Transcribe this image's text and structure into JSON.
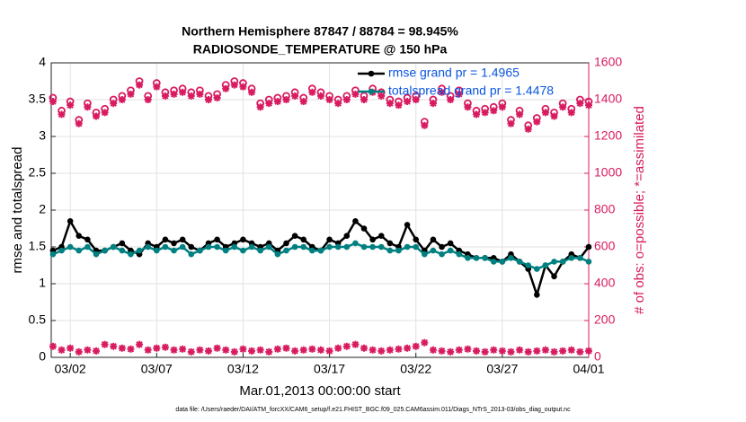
{
  "chart_data": {
    "type": "line",
    "title": "Northern Hemisphere 87847 / 88784 = 98.945%",
    "subtitle": "RADIOSONDE_TEMPERATURE @ 150 hPa",
    "xlabel": "Mar.01,2013 00:00:00 start",
    "ylabel": "rmse and totalspread",
    "y2label": "# of obs: o=possible; *=assimilated",
    "footnote": "data file: /Users/raeder/DAI/ATM_forcXX/CAM6_setup/f.e21.FHIST_BGC.f09_025.CAM6assim.011/Diags_NTrS_2013-03/obs_diag_output.nc",
    "grid": true,
    "legend": "upper right",
    "xlim": [
      -0.1,
      31
    ],
    "ylim": [
      0,
      4
    ],
    "y2lim": [
      0,
      1600
    ],
    "xticks": [
      {
        "value": 1,
        "label": "03/02"
      },
      {
        "value": 6,
        "label": "03/07"
      },
      {
        "value": 11,
        "label": "03/12"
      },
      {
        "value": 16,
        "label": "03/17"
      },
      {
        "value": 21,
        "label": "03/22"
      },
      {
        "value": 26,
        "label": "03/27"
      },
      {
        "value": 31,
        "label": "04/01"
      }
    ],
    "yticks": [
      0,
      0.5,
      1,
      1.5,
      2,
      2.5,
      3,
      3.5,
      4
    ],
    "y2ticks": [
      0,
      200,
      400,
      600,
      800,
      1000,
      1200,
      1400,
      1600
    ],
    "x": [
      0,
      0.5,
      1,
      1.5,
      2,
      2.5,
      3,
      3.5,
      4,
      4.5,
      5,
      5.5,
      6,
      6.5,
      7,
      7.5,
      8,
      8.5,
      9,
      9.5,
      10,
      10.5,
      11,
      11.5,
      12,
      12.5,
      13,
      13.5,
      14,
      14.5,
      15,
      15.5,
      16,
      16.5,
      17,
      17.5,
      18,
      18.5,
      19,
      19.5,
      20,
      20.5,
      21,
      21.5,
      22,
      22.5,
      23,
      23.5,
      24,
      24.5,
      25,
      25.5,
      26,
      26.5,
      27,
      27.5,
      28,
      28.5,
      29,
      29.5,
      30,
      30.5,
      31
    ],
    "series": [
      {
        "name": "rmse grand pr = 1.4965",
        "color": "#000000",
        "marker": "dot",
        "line": true,
        "values": [
          1.45,
          1.5,
          1.85,
          1.65,
          1.6,
          1.45,
          1.45,
          1.5,
          1.55,
          1.45,
          1.4,
          1.55,
          1.5,
          1.6,
          1.55,
          1.6,
          1.5,
          1.45,
          1.55,
          1.6,
          1.5,
          1.55,
          1.6,
          1.55,
          1.5,
          1.55,
          1.45,
          1.55,
          1.65,
          1.6,
          1.5,
          1.45,
          1.6,
          1.55,
          1.65,
          1.85,
          1.75,
          1.6,
          1.65,
          1.55,
          1.5,
          1.8,
          1.6,
          1.45,
          1.6,
          1.5,
          1.55,
          1.45,
          1.4,
          1.35,
          1.35,
          1.35,
          1.3,
          1.4,
          1.3,
          1.2,
          0.85,
          1.25,
          1.1,
          1.3,
          1.4,
          1.35,
          1.5
        ]
      },
      {
        "name": "totalspread grand pr = 1.4478",
        "color": "#008080",
        "marker": "dot",
        "line": true,
        "values": [
          1.4,
          1.45,
          1.5,
          1.45,
          1.5,
          1.4,
          1.45,
          1.5,
          1.45,
          1.4,
          1.45,
          1.5,
          1.45,
          1.5,
          1.45,
          1.5,
          1.4,
          1.45,
          1.5,
          1.5,
          1.45,
          1.5,
          1.45,
          1.5,
          1.45,
          1.5,
          1.4,
          1.45,
          1.5,
          1.5,
          1.45,
          1.45,
          1.5,
          1.5,
          1.5,
          1.55,
          1.5,
          1.5,
          1.5,
          1.45,
          1.45,
          1.5,
          1.5,
          1.4,
          1.45,
          1.4,
          1.45,
          1.4,
          1.35,
          1.35,
          1.35,
          1.3,
          1.3,
          1.35,
          1.3,
          1.25,
          1.2,
          1.25,
          1.3,
          1.3,
          1.35,
          1.35,
          1.3
        ]
      },
      {
        "color": "#d81b60",
        "marker": "o",
        "axis": "y2",
        "values": [
          1410,
          1340,
          1390,
          1290,
          1380,
          1330,
          1350,
          1400,
          1420,
          1450,
          1500,
          1420,
          1490,
          1440,
          1450,
          1460,
          1440,
          1450,
          1420,
          1430,
          1480,
          1500,
          1490,
          1460,
          1380,
          1400,
          1410,
          1420,
          1440,
          1410,
          1460,
          1440,
          1420,
          1400,
          1420,
          1450,
          1420,
          1460,
          1440,
          1400,
          1390,
          1410,
          1420,
          1280,
          1400,
          1460,
          1420,
          1450,
          1380,
          1340,
          1350,
          1360,
          1380,
          1290,
          1340,
          1260,
          1300,
          1350,
          1330,
          1380,
          1350,
          1400,
          1390
        ]
      },
      {
        "color": "#d81b60",
        "marker": "*",
        "axis": "y2",
        "values": [
          1390,
          1320,
          1370,
          1270,
          1360,
          1310,
          1330,
          1380,
          1400,
          1430,
          1480,
          1400,
          1470,
          1420,
          1430,
          1440,
          1420,
          1430,
          1400,
          1410,
          1460,
          1480,
          1470,
          1440,
          1360,
          1380,
          1390,
          1400,
          1420,
          1390,
          1440,
          1420,
          1400,
          1380,
          1400,
          1430,
          1400,
          1440,
          1420,
          1380,
          1370,
          1390,
          1400,
          1260,
          1380,
          1440,
          1400,
          1430,
          1360,
          1320,
          1330,
          1340,
          1360,
          1270,
          1320,
          1240,
          1280,
          1330,
          1310,
          1360,
          1330,
          1380,
          1370
        ]
      },
      {
        "color": "#d81b60",
        "marker": "*",
        "axis": "y2",
        "values": [
          60,
          40,
          50,
          30,
          40,
          35,
          70,
          60,
          50,
          45,
          70,
          40,
          50,
          55,
          40,
          45,
          30,
          40,
          35,
          50,
          40,
          30,
          45,
          35,
          40,
          30,
          45,
          50,
          35,
          40,
          45,
          40,
          35,
          50,
          60,
          70,
          50,
          40,
          35,
          40,
          45,
          50,
          60,
          80,
          40,
          35,
          30,
          40,
          45,
          35,
          30,
          40,
          35,
          30,
          40,
          30,
          35,
          40,
          30,
          35,
          40,
          30,
          35
        ]
      }
    ]
  }
}
